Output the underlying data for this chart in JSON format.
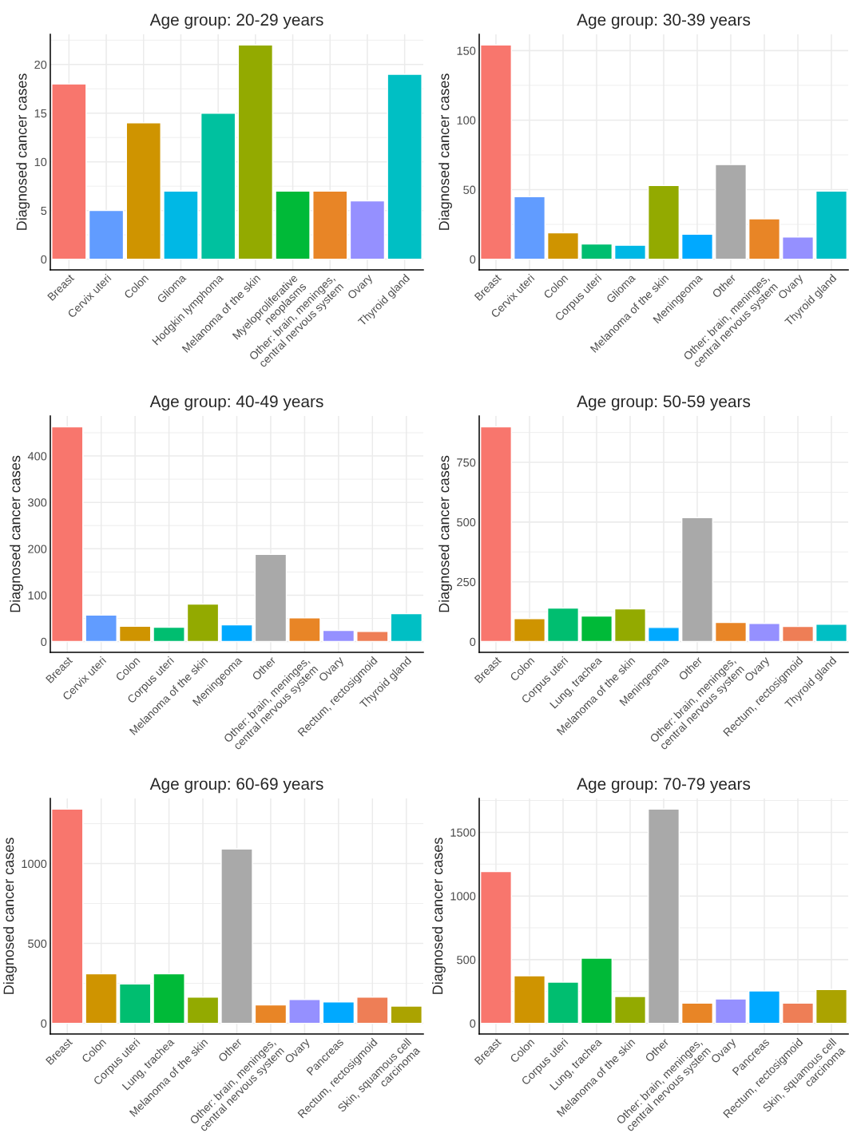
{
  "chart_data": [
    {
      "type": "bar",
      "title": "Age group: 20-29 years",
      "ylabel": "Diagnosed cancer cases",
      "categories": [
        "Breast",
        "Cervix uteri",
        "Colon",
        "Glioma",
        "Hodgkin lymphoma",
        "Melanoma of the skin",
        "Myeloproliferative\nneoplasms",
        "Other: brain, meninges,\ncentral nervous system",
        "Ovary",
        "Thyroid gland"
      ],
      "values": [
        18,
        5,
        14,
        7,
        15,
        22,
        7,
        7,
        6,
        19
      ],
      "colors": [
        "#F8766D",
        "#619CFF",
        "#CF9400",
        "#00B8E5",
        "#00C19F",
        "#93AA00",
        "#00BA38",
        "#E88526",
        "#9590FF",
        "#00BFC4"
      ],
      "ylim": [
        -1.1,
        23.1
      ],
      "yticks": [
        0,
        5,
        10,
        15,
        20
      ],
      "grid": true
    },
    {
      "type": "bar",
      "title": "Age group: 30-39 years",
      "ylabel": "Diagnosed cancer cases",
      "categories": [
        "Breast",
        "Cervix uteri",
        "Colon",
        "Corpus uteri",
        "Glioma",
        "Melanoma of the skin",
        "Meningeoma",
        "Other",
        "Other: brain, meninges,\ncentral nervous system",
        "Ovary",
        "Thyroid gland"
      ],
      "values": [
        154,
        45,
        19,
        11,
        10,
        53,
        18,
        68,
        29,
        16,
        49
      ],
      "colors": [
        "#F8766D",
        "#619CFF",
        "#CF9400",
        "#00BE70",
        "#00B8E5",
        "#93AA00",
        "#00A9FF",
        "#A9A9A9",
        "#E88526",
        "#9590FF",
        "#00BFC4"
      ],
      "ylim": [
        -7.7,
        161.7
      ],
      "yticks": [
        0,
        50,
        100,
        150
      ],
      "grid": true
    },
    {
      "type": "bar",
      "title": "Age group: 40-49 years",
      "ylabel": "Diagnosed cancer cases",
      "categories": [
        "Breast",
        "Cervix uteri",
        "Colon",
        "Corpus uteri",
        "Melanoma of the skin",
        "Meningeoma",
        "Other",
        "Other: brain, meninges,\ncentral nervous system",
        "Ovary",
        "Rectum, rectosigmoid",
        "Thyroid gland"
      ],
      "values": [
        463,
        57,
        33,
        31,
        81,
        36,
        188,
        51,
        24,
        22,
        60
      ],
      "colors": [
        "#F8766D",
        "#619CFF",
        "#CF9400",
        "#00BE70",
        "#93AA00",
        "#00A9FF",
        "#A9A9A9",
        "#E88526",
        "#9590FF",
        "#EE7E56",
        "#00BFC4"
      ],
      "ylim": [
        -23.15,
        486.15
      ],
      "yticks": [
        0,
        100,
        200,
        300,
        400
      ],
      "grid": true
    },
    {
      "type": "bar",
      "title": "Age group: 50-59 years",
      "ylabel": "Diagnosed cancer cases",
      "categories": [
        "Breast",
        "Colon",
        "Corpus uteri",
        "Lung, trachea",
        "Melanoma of the skin",
        "Meningeoma",
        "Other",
        "Other: brain, meninges,\ncentral nervous system",
        "Ovary",
        "Rectum, rectosigmoid",
        "Thyroid gland"
      ],
      "values": [
        899,
        96,
        140,
        107,
        137,
        59,
        519,
        80,
        76,
        63,
        73
      ],
      "colors": [
        "#F8766D",
        "#CF9400",
        "#00BE70",
        "#00BA38",
        "#93AA00",
        "#00A9FF",
        "#A9A9A9",
        "#E88526",
        "#9590FF",
        "#EE7E56",
        "#00BFC4"
      ],
      "ylim": [
        -45,
        944
      ],
      "yticks": [
        0,
        250,
        500,
        750
      ],
      "grid": true
    },
    {
      "type": "bar",
      "title": "Age group: 60-69 years",
      "ylabel": "Diagnosed cancer cases",
      "categories": [
        "Breast",
        "Colon",
        "Corpus uteri",
        "Lung, trachea",
        "Melanoma of the skin",
        "Other",
        "Other: brain, meninges,\ncentral nervous system",
        "Ovary",
        "Pancreas",
        "Rectum, rectosigmoid",
        "Skin, squamous cell\ncarcinoma"
      ],
      "values": [
        1341,
        310,
        246,
        310,
        164,
        1092,
        115,
        149,
        134,
        164,
        108
      ],
      "colors": [
        "#F8766D",
        "#CF9400",
        "#00BE70",
        "#00BA38",
        "#93AA00",
        "#A9A9A9",
        "#E88526",
        "#9590FF",
        "#00A9FF",
        "#EE7E56",
        "#ABA300"
      ],
      "ylim": [
        -67,
        1408
      ],
      "yticks": [
        0,
        500,
        1000
      ],
      "grid": true
    },
    {
      "type": "bar",
      "title": "Age group: 70-79 years",
      "ylabel": "Diagnosed cancer cases",
      "categories": [
        "Breast",
        "Colon",
        "Corpus uteri",
        "Lung, trachea",
        "Melanoma of the skin",
        "Other",
        "Other: brain, meninges,\ncentral nervous system",
        "Ovary",
        "Pancreas",
        "Rectum, rectosigmoid",
        "Skin, squamous cell\ncarcinoma"
      ],
      "values": [
        1192,
        373,
        323,
        512,
        210,
        1682,
        159,
        191,
        254,
        159,
        266
      ],
      "colors": [
        "#F8766D",
        "#CF9400",
        "#00BE70",
        "#00BA38",
        "#93AA00",
        "#A9A9A9",
        "#E88526",
        "#9590FF",
        "#00A9FF",
        "#EE7E56",
        "#ABA300"
      ],
      "ylim": [
        -84,
        1766
      ],
      "yticks": [
        0,
        500,
        1000,
        1500
      ],
      "grid": true
    }
  ]
}
